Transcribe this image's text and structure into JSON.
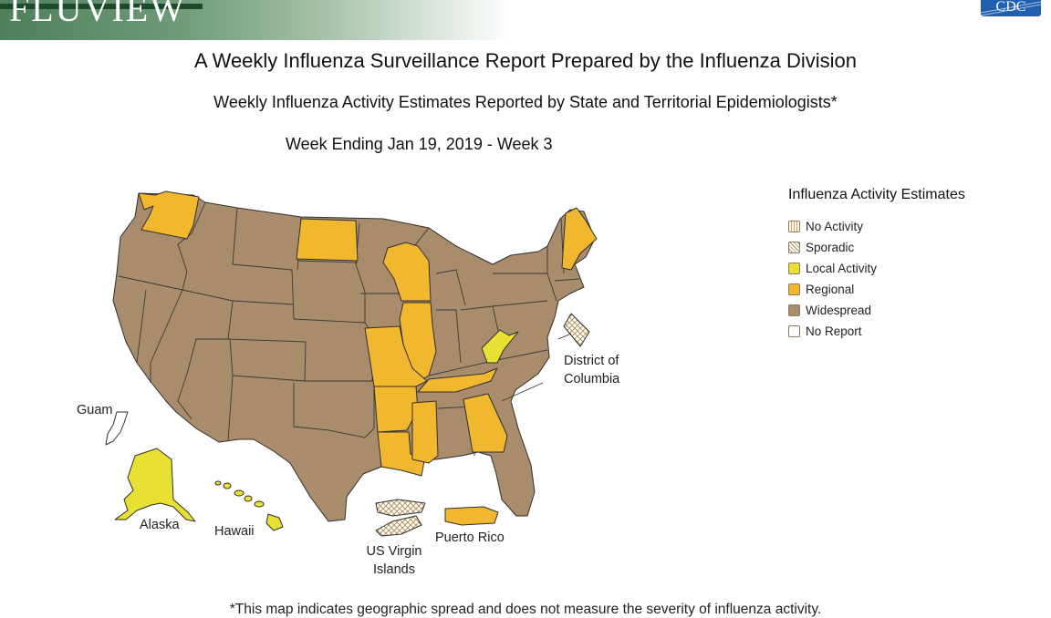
{
  "header": {
    "banner_title": "FLUVIEW",
    "title": "A Weekly Influenza Surveillance Report Prepared by the Influenza Division",
    "subtitle": "Weekly Influenza Activity Estimates Reported by State and Territorial Epidemiologists*",
    "week": "Week Ending Jan 19, 2019 - Week 3",
    "logo": "CDC"
  },
  "colors": {
    "widespread": "#a88c6b",
    "regional": "#f1b72e",
    "local": "#e8e032",
    "sporadic": "#ffffff",
    "no_activity": "#fff6e6",
    "no_report": "#ffffff",
    "border": "#2f2f2f"
  },
  "legend": {
    "title": "Influenza Activity Estimates",
    "items": [
      {
        "label": "No Activity",
        "key": "no_activity",
        "pattern": "vertical-lines"
      },
      {
        "label": "Sporadic",
        "key": "sporadic",
        "pattern": "crosshatch"
      },
      {
        "label": "Local Activity",
        "key": "local",
        "pattern": "solid"
      },
      {
        "label": "Regional",
        "key": "regional",
        "pattern": "solid"
      },
      {
        "label": "Widespread",
        "key": "widespread",
        "pattern": "solid"
      },
      {
        "label": "No Report",
        "key": "no_report",
        "pattern": "solid"
      }
    ]
  },
  "map": {
    "default_level": "Widespread",
    "states": {
      "Washington": "Regional",
      "North Dakota": "Regional",
      "Wisconsin": "Regional",
      "Illinois": "Regional",
      "Missouri": "Regional",
      "Arkansas": "Regional",
      "Louisiana": "Regional",
      "Mississippi": "Regional",
      "Tennessee": "Regional",
      "Georgia": "Regional",
      "Maine": "Regional",
      "West Virginia": "Local Activity",
      "Alaska": "Local Activity",
      "Hawaii": "Local Activity"
    },
    "territories": {
      "District of Columbia": "Sporadic",
      "US Virgin Islands": "Sporadic",
      "Puerto Rico": "Regional",
      "Guam": "No Report"
    },
    "labels": {
      "guam": "Guam",
      "alaska": "Alaska",
      "hawaii": "Hawaii",
      "usvi_line1": "US Virgin",
      "usvi_line2": "Islands",
      "puerto_rico": "Puerto Rico",
      "dc_line1": "District of",
      "dc_line2": "Columbia"
    }
  },
  "footnote": "*This map indicates geographic spread and does not measure the severity of influenza activity."
}
